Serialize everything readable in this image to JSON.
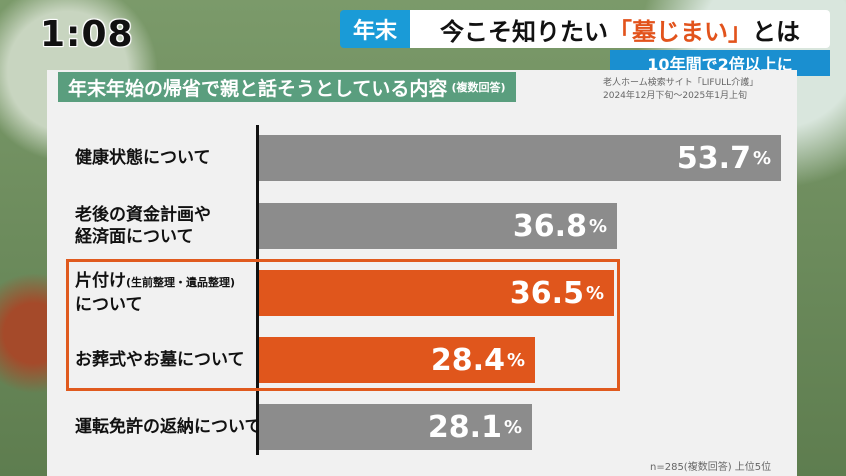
{
  "overlay": {
    "clock": "1:08",
    "tag": "年末",
    "headline_before": "今こそ知りたい",
    "headline_highlight": "「墓じまい」",
    "headline_after": "とは",
    "subheadline": "10年間で2倍以上に"
  },
  "panel": {
    "title": "年末年始の帰省で親と話そうとしている内容",
    "title_note": "(複数回答)",
    "source_line1": "老人ホーム検索サイト「LIFULL介護」",
    "source_line2": "2024年12月下旬～2025年1月上旬",
    "footnote": "n=285(複数回答) 上位5位"
  },
  "colors": {
    "gray": "#8c8c8c",
    "orange": "#e0561c",
    "green": "#5a9e7e",
    "blue": "#1a9bd7"
  },
  "chart_data": {
    "type": "bar",
    "orientation": "horizontal",
    "unit": "%",
    "xlim": [
      0,
      60
    ],
    "categories": [
      {
        "line1": "健康状態について",
        "line2": "",
        "paren": "",
        "value": 53.7,
        "label": "53.7",
        "highlight": false
      },
      {
        "line1": "老後の資金計画や",
        "line2": "経済面について",
        "paren": "",
        "value": 36.8,
        "label": "36.8",
        "highlight": false
      },
      {
        "line1": "片付け",
        "paren": "(生前整理・遺品整理)",
        "line2": "について",
        "value": 36.5,
        "label": "36.5",
        "highlight": true
      },
      {
        "line1": "お葬式やお墓について",
        "line2": "",
        "paren": "",
        "value": 28.4,
        "label": "28.4",
        "highlight": true
      },
      {
        "line1": "運転免許の返納について",
        "line2": "",
        "paren": "",
        "value": 28.1,
        "label": "28.1",
        "highlight": false
      }
    ]
  }
}
